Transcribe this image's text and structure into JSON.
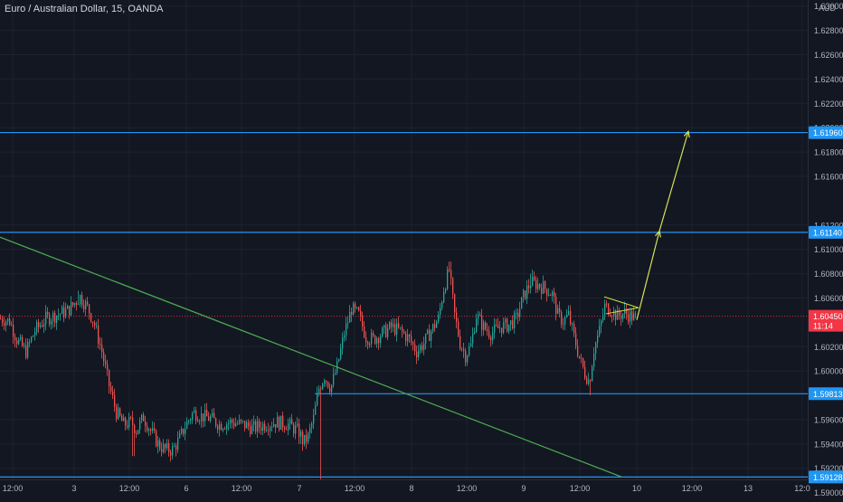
{
  "chart_data": {
    "type": "candlestick",
    "title": "Euro / Australian Dollar, 15, OANDA",
    "currency": "AUD",
    "ylim": [
      1.5896,
      1.6305
    ],
    "y_ticks": [
      "1.59000",
      "1.59200",
      "1.59400",
      "1.59600",
      "1.60000",
      "1.60200",
      "1.60600",
      "1.60800",
      "1.61000",
      "1.61200",
      "1.61600",
      "1.61800",
      "1.62000",
      "1.62200",
      "1.62400",
      "1.62600",
      "1.62800",
      "1.63000"
    ],
    "x_ticks": [
      "12:00",
      "3",
      "12:00",
      "6",
      "12:00",
      "7",
      "12:00",
      "8",
      "12:00",
      "9",
      "12:00",
      "10",
      "12:00",
      "13",
      "12:0"
    ],
    "horizontal_levels": [
      {
        "value": 1.6196,
        "label": "1.61960"
      },
      {
        "value": 1.6114,
        "label": "1.61140"
      },
      {
        "value": 1.59813,
        "label": "1.59813"
      },
      {
        "value": 1.59128,
        "label": "1.59128"
      }
    ],
    "current_price": {
      "value": 1.6045,
      "label": "1.60450",
      "countdown": "11:14"
    },
    "trendline": {
      "from": 1.611,
      "to": 1.5913
    },
    "projection": [
      1.6042,
      1.6115,
      1.6197
    ],
    "price_path": [
      [
        0,
        1.6043
      ],
      [
        10,
        1.6041
      ],
      [
        18,
        1.6026
      ],
      [
        28,
        1.6016
      ],
      [
        38,
        1.6033
      ],
      [
        50,
        1.6043
      ],
      [
        62,
        1.6046
      ],
      [
        75,
        1.605
      ],
      [
        88,
        1.6061
      ],
      [
        97,
        1.6051
      ],
      [
        104,
        1.6038
      ],
      [
        112,
        1.6016
      ],
      [
        120,
        1.5988
      ],
      [
        128,
        1.5966
      ],
      [
        136,
        1.5956
      ],
      [
        145,
        1.5958
      ],
      [
        150,
        1.5951
      ],
      [
        158,
        1.5962
      ],
      [
        166,
        1.5951
      ],
      [
        175,
        1.5939
      ],
      [
        183,
        1.5935
      ],
      [
        190,
        1.5935
      ],
      [
        197,
        1.5943
      ],
      [
        205,
        1.5956
      ],
      [
        213,
        1.5966
      ],
      [
        222,
        1.5963
      ],
      [
        232,
        1.5961
      ],
      [
        242,
        1.5956
      ],
      [
        255,
        1.5958
      ],
      [
        268,
        1.5956
      ],
      [
        280,
        1.5953
      ],
      [
        292,
        1.5956
      ],
      [
        305,
        1.5958
      ],
      [
        318,
        1.5956
      ],
      [
        330,
        1.595
      ],
      [
        335,
        1.5941
      ],
      [
        340,
        1.5946
      ],
      [
        346,
        1.5961
      ],
      [
        352,
        1.5986
      ],
      [
        358,
        1.5996
      ],
      [
        365,
        1.5986
      ],
      [
        372,
        1.6003
      ],
      [
        380,
        1.6031
      ],
      [
        388,
        1.6051
      ],
      [
        396,
        1.6046
      ],
      [
        404,
        1.6028
      ],
      [
        412,
        1.6026
      ],
      [
        422,
        1.6031
      ],
      [
        432,
        1.6036
      ],
      [
        442,
        1.6033
      ],
      [
        452,
        1.6026
      ],
      [
        460,
        1.6016
      ],
      [
        468,
        1.6023
      ],
      [
        476,
        1.6033
      ],
      [
        484,
        1.6043
      ],
      [
        490,
        1.6068
      ],
      [
        496,
        1.6083
      ],
      [
        502,
        1.6046
      ],
      [
        508,
        1.6023
      ],
      [
        514,
        1.6013
      ],
      [
        520,
        1.6021
      ],
      [
        526,
        1.6046
      ],
      [
        534,
        1.6036
      ],
      [
        542,
        1.6031
      ],
      [
        552,
        1.6036
      ],
      [
        562,
        1.6038
      ],
      [
        570,
        1.6043
      ],
      [
        578,
        1.6061
      ],
      [
        586,
        1.6073
      ],
      [
        594,
        1.6071
      ],
      [
        602,
        1.6068
      ],
      [
        610,
        1.6063
      ],
      [
        616,
        1.6046
      ],
      [
        622,
        1.6041
      ],
      [
        628,
        1.6046
      ],
      [
        634,
        1.6028
      ],
      [
        640,
        1.6011
      ],
      [
        646,
        1.5998
      ],
      [
        651,
        1.5991
      ],
      [
        656,
        1.6018
      ],
      [
        662,
        1.6033
      ],
      [
        668,
        1.6053
      ],
      [
        675,
        1.605
      ],
      [
        682,
        1.6045
      ],
      [
        690,
        1.6048
      ],
      [
        697,
        1.6045
      ],
      [
        703,
        1.6043
      ]
    ]
  }
}
